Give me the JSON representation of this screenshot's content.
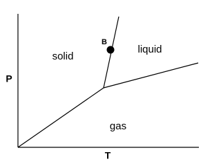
{
  "axes": {
    "y_label": "P",
    "x_label": "T"
  },
  "regions": {
    "solid": "solid",
    "liquid": "liquid",
    "gas": "gas"
  },
  "point": {
    "label": "B"
  }
}
